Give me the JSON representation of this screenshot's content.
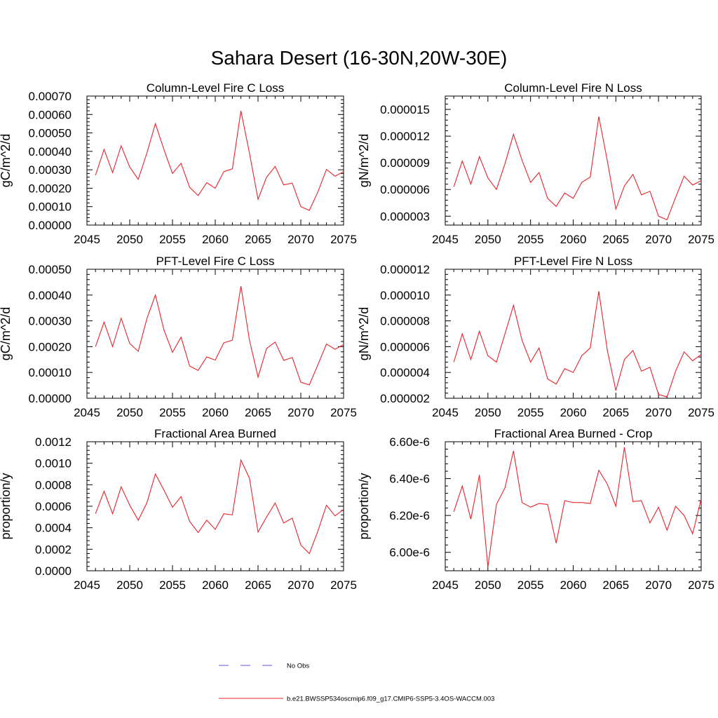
{
  "figure": {
    "title": "Sahara Desert (16-30N,20W-30E)"
  },
  "legend": {
    "entries": [
      {
        "label": "No Obs",
        "color": "#5a5ad6",
        "style": "dashed"
      },
      {
        "label": "b.e21.BWSSP534oscmip6.f09_g17.CMIP6-SSP5-3.4OS-WACCM.003",
        "color": "#e8232a",
        "style": "solid"
      }
    ]
  },
  "chart_data": [
    {
      "type": "line",
      "title": "Column-Level Fire C Loss",
      "ylabel": "gC/m^2/d",
      "xlim": [
        2045,
        2075
      ],
      "ylim": [
        0,
        0.0007
      ],
      "xticks": [
        2045,
        2050,
        2055,
        2060,
        2065,
        2070,
        2075
      ],
      "xtick_labels": [
        "2045",
        "2050",
        "2055",
        "2060",
        "2065",
        "2070",
        "2075"
      ],
      "yticks": [
        0,
        0.0001,
        0.0002,
        0.0003,
        0.0004,
        0.0005,
        0.0006,
        0.0007
      ],
      "ytick_labels": [
        "0.00000",
        "0.00010",
        "0.00020",
        "0.00030",
        "0.00040",
        "0.00050",
        "0.00060",
        "0.00070"
      ],
      "series": [
        {
          "color": "#e8232a",
          "x": [
            2046,
            2047,
            2048,
            2049,
            2050,
            2051,
            2052,
            2053,
            2054,
            2055,
            2056,
            2057,
            2058,
            2059,
            2060,
            2061,
            2062,
            2063,
            2064,
            2065,
            2066,
            2067,
            2068,
            2069,
            2070,
            2071,
            2072,
            2073,
            2074,
            2075
          ],
          "y": [
            0.00027,
            0.00041,
            0.000285,
            0.00043,
            0.000315,
            0.000248,
            0.00039,
            0.00055,
            0.00041,
            0.00028,
            0.000335,
            0.000205,
            0.00016,
            0.00023,
            0.0002,
            0.00029,
            0.000305,
            0.00062,
            0.00039,
            0.00014,
            0.00026,
            0.000318,
            0.000218,
            0.000228,
            0.0001,
            8e-05,
            0.00018,
            0.000302,
            0.000265,
            0.00029
          ]
        }
      ]
    },
    {
      "type": "line",
      "title": "Column-Level Fire N Loss",
      "ylabel": "gN/m^2/d",
      "xlim": [
        2045,
        2075
      ],
      "ylim": [
        2e-06,
        1.65e-05
      ],
      "xticks": [
        2045,
        2050,
        2055,
        2060,
        2065,
        2070,
        2075
      ],
      "xtick_labels": [
        "2045",
        "2050",
        "2055",
        "2060",
        "2065",
        "2070",
        "2075"
      ],
      "yticks": [
        3e-06,
        6e-06,
        9e-06,
        1.2e-05,
        1.5e-05
      ],
      "ytick_labels": [
        "0.000003",
        "0.000006",
        "0.000009",
        "0.000012",
        "0.000015"
      ],
      "series": [
        {
          "color": "#e8232a",
          "x": [
            2046,
            2047,
            2048,
            2049,
            2050,
            2051,
            2052,
            2053,
            2054,
            2055,
            2056,
            2057,
            2058,
            2059,
            2060,
            2061,
            2062,
            2063,
            2064,
            2065,
            2066,
            2067,
            2068,
            2069,
            2070,
            2071,
            2072,
            2073,
            2074,
            2075
          ],
          "y": [
            6.3e-06,
            9.2e-06,
            6.6e-06,
            9.7e-06,
            7.3e-06,
            6e-06,
            8.9e-06,
            1.22e-05,
            9.3e-06,
            6.8e-06,
            7.9e-06,
            5e-06,
            4.1e-06,
            5.6e-06,
            5e-06,
            6.8e-06,
            7.4e-06,
            1.42e-05,
            9.2e-06,
            3.8e-06,
            6.4e-06,
            7.7e-06,
            5.4e-06,
            5.8e-06,
            3e-06,
            2.6e-06,
            5.1e-06,
            7.5e-06,
            6.5e-06,
            7e-06
          ]
        }
      ]
    },
    {
      "type": "line",
      "title": "PFT-Level Fire C Loss",
      "ylabel": "gC/m^2/d",
      "xlim": [
        2045,
        2075
      ],
      "ylim": [
        0,
        0.0005
      ],
      "xticks": [
        2045,
        2050,
        2055,
        2060,
        2065,
        2070,
        2075
      ],
      "xtick_labels": [
        "2045",
        "2050",
        "2055",
        "2060",
        "2065",
        "2070",
        "2075"
      ],
      "yticks": [
        0,
        0.0001,
        0.0002,
        0.0003,
        0.0004,
        0.0005
      ],
      "ytick_labels": [
        "0.00000",
        "0.00010",
        "0.00020",
        "0.00030",
        "0.00040",
        "0.00050"
      ],
      "series": [
        {
          "color": "#e8232a",
          "x": [
            2046,
            2047,
            2048,
            2049,
            2050,
            2051,
            2052,
            2053,
            2054,
            2055,
            2056,
            2057,
            2058,
            2059,
            2060,
            2061,
            2062,
            2063,
            2064,
            2065,
            2066,
            2067,
            2068,
            2069,
            2070,
            2071,
            2072,
            2073,
            2074,
            2075
          ],
          "y": [
            0.0002,
            0.000295,
            0.0002,
            0.00031,
            0.000212,
            0.000182,
            0.000308,
            0.0004,
            0.000265,
            0.000178,
            0.000237,
            0.000125,
            0.000108,
            0.00016,
            0.000148,
            0.000215,
            0.000225,
            0.000435,
            0.000225,
            8.2e-05,
            0.000193,
            0.000218,
            0.000147,
            0.000158,
            6.2e-05,
            5.2e-05,
            0.00013,
            0.00021,
            0.00019,
            0.000208
          ]
        }
      ]
    },
    {
      "type": "line",
      "title": "PFT-Level Fire N Loss",
      "ylabel": "gN/m^2/d",
      "xlim": [
        2045,
        2075
      ],
      "ylim": [
        2e-06,
        1.2e-05
      ],
      "xticks": [
        2045,
        2050,
        2055,
        2060,
        2065,
        2070,
        2075
      ],
      "xtick_labels": [
        "2045",
        "2050",
        "2055",
        "2060",
        "2065",
        "2070",
        "2075"
      ],
      "yticks": [
        2e-06,
        4e-06,
        6e-06,
        8e-06,
        1e-05,
        1.2e-05
      ],
      "ytick_labels": [
        "0.000002",
        "0.000004",
        "0.000006",
        "0.000008",
        "0.000010",
        "0.000012"
      ],
      "series": [
        {
          "color": "#e8232a",
          "x": [
            2046,
            2047,
            2048,
            2049,
            2050,
            2051,
            2052,
            2053,
            2054,
            2055,
            2056,
            2057,
            2058,
            2059,
            2060,
            2061,
            2062,
            2063,
            2064,
            2065,
            2066,
            2067,
            2068,
            2069,
            2070,
            2071,
            2072,
            2073,
            2074,
            2075
          ],
          "y": [
            4.8e-06,
            7e-06,
            5e-06,
            7.2e-06,
            5.3e-06,
            4.8e-06,
            7e-06,
            9.2e-06,
            6.5e-06,
            4.8e-06,
            5.9e-06,
            3.5e-06,
            3.1e-06,
            4.3e-06,
            4e-06,
            5.3e-06,
            5.9e-06,
            1.03e-05,
            5.7e-06,
            2.6e-06,
            5e-06,
            5.7e-06,
            4.1e-06,
            4.4e-06,
            2.3e-06,
            2.1e-06,
            4.1e-06,
            5.6e-06,
            4.9e-06,
            5.4e-06
          ]
        }
      ]
    },
    {
      "type": "line",
      "title": "Fractional Area Burned",
      "ylabel": "proportion/y",
      "xlim": [
        2045,
        2075
      ],
      "ylim": [
        0,
        0.0012
      ],
      "xticks": [
        2045,
        2050,
        2055,
        2060,
        2065,
        2070,
        2075
      ],
      "xtick_labels": [
        "2045",
        "2050",
        "2055",
        "2060",
        "2065",
        "2070",
        "2075"
      ],
      "yticks": [
        0,
        0.0002,
        0.0004,
        0.0006,
        0.0008,
        0.001,
        0.0012
      ],
      "ytick_labels": [
        "0.0000",
        "0.0002",
        "0.0004",
        "0.0006",
        "0.0008",
        "0.0010",
        "0.0012"
      ],
      "series": [
        {
          "color": "#e8232a",
          "x": [
            2046,
            2047,
            2048,
            2049,
            2050,
            2051,
            2052,
            2053,
            2054,
            2055,
            2056,
            2057,
            2058,
            2059,
            2060,
            2061,
            2062,
            2063,
            2064,
            2065,
            2066,
            2067,
            2068,
            2069,
            2070,
            2071,
            2072,
            2073,
            2074,
            2075
          ],
          "y": [
            0.00053,
            0.00074,
            0.00053,
            0.00078,
            0.00061,
            0.00047,
            0.00063,
            0.0009,
            0.00075,
            0.00059,
            0.00069,
            0.00046,
            0.000355,
            0.00047,
            0.000385,
            0.00053,
            0.00052,
            0.00103,
            0.00086,
            0.00036,
            0.0005,
            0.00063,
            0.000445,
            0.00049,
            0.00024,
            0.00016,
            0.00037,
            0.00061,
            0.00051,
            0.00057
          ]
        }
      ]
    },
    {
      "type": "line",
      "title": "Fractional Area Burned - Crop",
      "ylabel": "proportion/y",
      "xlim": [
        2045,
        2075
      ],
      "ylim": [
        5.9e-06,
        6.6e-06
      ],
      "xticks": [
        2045,
        2050,
        2055,
        2060,
        2065,
        2070,
        2075
      ],
      "xtick_labels": [
        "2045",
        "2050",
        "2055",
        "2060",
        "2065",
        "2070",
        "2075"
      ],
      "yticks": [
        6e-06,
        6.2e-06,
        6.4e-06,
        6.6e-06
      ],
      "ytick_labels": [
        "6.00e-6",
        "6.20e-6",
        "6.40e-6",
        "6.60e-6"
      ],
      "series": [
        {
          "color": "#e8232a",
          "x": [
            2046,
            2047,
            2048,
            2049,
            2050,
            2051,
            2052,
            2053,
            2054,
            2055,
            2056,
            2057,
            2058,
            2059,
            2060,
            2061,
            2062,
            2063,
            2064,
            2065,
            2066,
            2067,
            2068,
            2069,
            2070,
            2071,
            2072,
            2073,
            2074,
            2075
          ],
          "y": [
            6.22e-06,
            6.36e-06,
            6.18e-06,
            6.42e-06,
            5.92e-06,
            6.26e-06,
            6.35e-06,
            6.55e-06,
            6.27e-06,
            6.245e-06,
            6.265e-06,
            6.26e-06,
            6.05e-06,
            6.28e-06,
            6.27e-06,
            6.27e-06,
            6.265e-06,
            6.445e-06,
            6.37e-06,
            6.25e-06,
            6.57e-06,
            6.275e-06,
            6.28e-06,
            6.16e-06,
            6.245e-06,
            6.12e-06,
            6.25e-06,
            6.2e-06,
            6.1e-06,
            6.29e-06
          ]
        }
      ]
    }
  ]
}
